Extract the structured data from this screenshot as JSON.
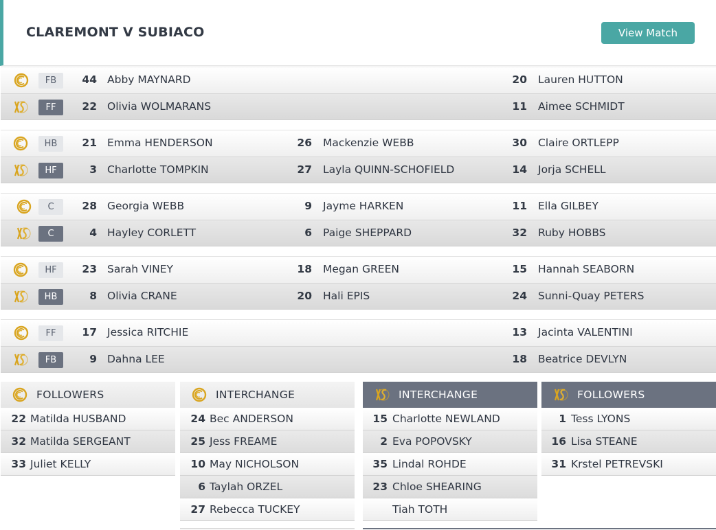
{
  "header": {
    "title": "CLAREMONT V SUBIACO",
    "view_match_label": "View Match"
  },
  "colors": {
    "accent": "#4aa7a4",
    "badge_dark": "#6b7280",
    "gold": "#d4a017"
  },
  "icons": {
    "home": "claremont-logo-icon",
    "away": "subiaco-logo-icon"
  },
  "lines": [
    {
      "home": {
        "pos": "FB",
        "players": [
          {
            "num": "44",
            "name": "Abby MAYNARD"
          },
          {
            "num": "",
            "name": ""
          },
          {
            "num": "20",
            "name": "Lauren HUTTON"
          }
        ]
      },
      "away": {
        "pos": "FF",
        "players": [
          {
            "num": "22",
            "name": "Olivia WOLMARANS"
          },
          {
            "num": "",
            "name": ""
          },
          {
            "num": "11",
            "name": "Aimee SCHMIDT"
          }
        ]
      }
    },
    {
      "home": {
        "pos": "HB",
        "players": [
          {
            "num": "21",
            "name": "Emma HENDERSON"
          },
          {
            "num": "26",
            "name": "Mackenzie WEBB"
          },
          {
            "num": "30",
            "name": "Claire ORTLEPP"
          }
        ]
      },
      "away": {
        "pos": "HF",
        "players": [
          {
            "num": "3",
            "name": "Charlotte TOMPKIN"
          },
          {
            "num": "27",
            "name": "Layla QUINN-SCHOFIELD"
          },
          {
            "num": "14",
            "name": "Jorja SCHELL"
          }
        ]
      }
    },
    {
      "home": {
        "pos": "C",
        "players": [
          {
            "num": "28",
            "name": "Georgia WEBB"
          },
          {
            "num": "9",
            "name": "Jayme HARKEN"
          },
          {
            "num": "11",
            "name": "Ella GILBEY"
          }
        ]
      },
      "away": {
        "pos": "C",
        "players": [
          {
            "num": "4",
            "name": "Hayley CORLETT"
          },
          {
            "num": "6",
            "name": "Paige SHEPPARD"
          },
          {
            "num": "32",
            "name": "Ruby HOBBS"
          }
        ]
      }
    },
    {
      "home": {
        "pos": "HF",
        "players": [
          {
            "num": "23",
            "name": "Sarah VINEY"
          },
          {
            "num": "18",
            "name": "Megan GREEN"
          },
          {
            "num": "15",
            "name": "Hannah SEABORN"
          }
        ]
      },
      "away": {
        "pos": "HB",
        "players": [
          {
            "num": "8",
            "name": "Olivia CRANE"
          },
          {
            "num": "20",
            "name": "Hali EPIS"
          },
          {
            "num": "24",
            "name": "Sunni-Quay PETERS"
          }
        ]
      }
    },
    {
      "home": {
        "pos": "FF",
        "players": [
          {
            "num": "17",
            "name": "Jessica RITCHIE"
          },
          {
            "num": "",
            "name": ""
          },
          {
            "num": "13",
            "name": "Jacinta VALENTINI"
          }
        ]
      },
      "away": {
        "pos": "FB",
        "players": [
          {
            "num": "9",
            "name": "Dahna LEE"
          },
          {
            "num": "",
            "name": ""
          },
          {
            "num": "18",
            "name": "Beatrice DEVLYN"
          }
        ]
      }
    }
  ],
  "boxes": [
    {
      "title": "FOLLOWERS",
      "team": "home",
      "players": [
        {
          "num": "22",
          "name": "Matilda HUSBAND"
        },
        {
          "num": "32",
          "name": "Matilda SERGEANT"
        },
        {
          "num": "33",
          "name": "Juliet KELLY"
        }
      ]
    },
    {
      "title": "INTERCHANGE",
      "team": "home",
      "players": [
        {
          "num": "24",
          "name": "Bec ANDERSON"
        },
        {
          "num": "25",
          "name": "Jess FREAME"
        },
        {
          "num": "10",
          "name": "May NICHOLSON"
        },
        {
          "num": "6",
          "name": "Taylah ORZEL"
        },
        {
          "num": "27",
          "name": "Rebecca TUCKEY"
        }
      ]
    },
    {
      "title": "INTERCHANGE",
      "team": "away",
      "players": [
        {
          "num": "15",
          "name": "Charlotte NEWLAND"
        },
        {
          "num": "2",
          "name": "Eva POPOVSKY"
        },
        {
          "num": "35",
          "name": "Lindal ROHDE"
        },
        {
          "num": "23",
          "name": "Chloe SHEARING"
        },
        {
          "num": "",
          "name": "Tiah TOTH"
        }
      ]
    },
    {
      "title": "FOLLOWERS",
      "team": "away",
      "players": [
        {
          "num": "1",
          "name": "Tess LYONS"
        },
        {
          "num": "16",
          "name": "Lisa STEANE"
        },
        {
          "num": "31",
          "name": "Krstel PETREVSKI"
        }
      ]
    }
  ]
}
